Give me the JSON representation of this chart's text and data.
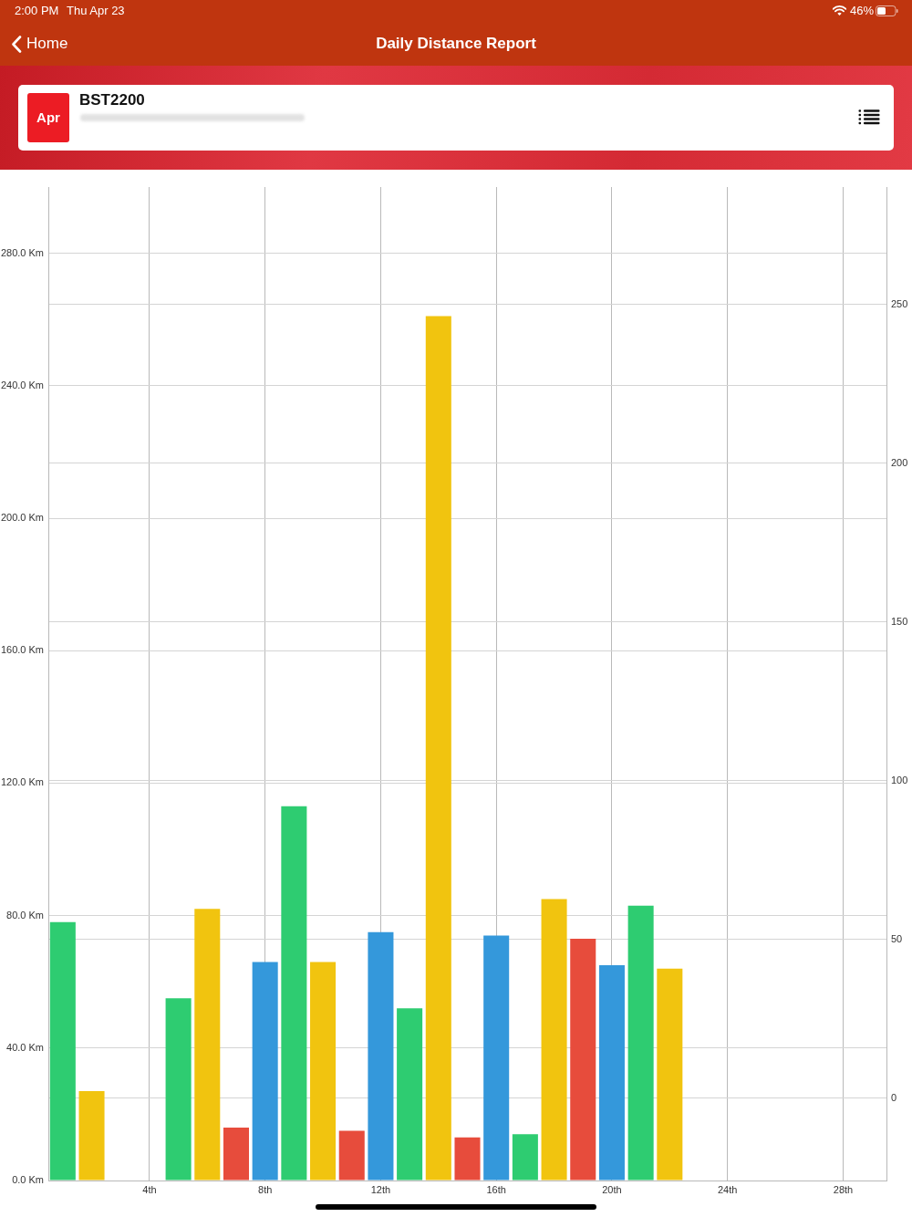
{
  "chart_data": {
    "type": "bar",
    "title": "Daily Distance Report",
    "subtitle": "BST2200",
    "annotations": [
      "2:00 PM",
      "Thu Apr 23",
      "46%",
      "Home",
      "Apr"
    ],
    "x": [
      1,
      2,
      5,
      6,
      7,
      8,
      9,
      10,
      11,
      12,
      13,
      14,
      15,
      16,
      17,
      18,
      19,
      20,
      21,
      22
    ],
    "values": [
      78,
      27,
      55,
      82,
      16,
      66,
      113,
      66,
      15,
      75,
      52,
      261,
      13,
      74,
      14,
      85,
      73,
      65,
      83,
      64
    ],
    "colors": [
      "#2ecc71",
      "#f1c40f",
      "#2ecc71",
      "#f1c40f",
      "#e74c3c",
      "#3498db",
      "#2ecc71",
      "#f1c40f",
      "#e74c3c",
      "#3498db",
      "#2ecc71",
      "#f1c40f",
      "#e74c3c",
      "#3498db",
      "#2ecc71",
      "#f1c40f",
      "#e74c3c",
      "#3498db",
      "#2ecc71",
      "#f1c40f"
    ],
    "xlim": [
      0.5,
      29.5
    ],
    "xticks": [
      {
        "value": 4,
        "label": "4th"
      },
      {
        "value": 8,
        "label": "8th"
      },
      {
        "value": 12,
        "label": "12th"
      },
      {
        "value": 16,
        "label": "16th"
      },
      {
        "value": 20,
        "label": "20th"
      },
      {
        "value": 24,
        "label": "24th"
      },
      {
        "value": 28,
        "label": "28th"
      }
    ],
    "ylim": [
      0,
      300
    ],
    "yticks": [
      {
        "value": 0,
        "label": "0.0 Km"
      },
      {
        "value": 40,
        "label": "40.0 Km"
      },
      {
        "value": 80,
        "label": "80.0 Km"
      },
      {
        "value": 120,
        "label": "120.0 Km"
      },
      {
        "value": 160,
        "label": "160.0 Km"
      },
      {
        "value": 200,
        "label": "200.0 Km"
      },
      {
        "value": 240,
        "label": "240.0 Km"
      },
      {
        "value": 280,
        "label": "280.0 Km"
      }
    ],
    "y2lim": [
      -26,
      287
    ],
    "y2ticks": [
      0,
      50,
      100,
      150,
      200,
      250
    ],
    "grid": true
  }
}
